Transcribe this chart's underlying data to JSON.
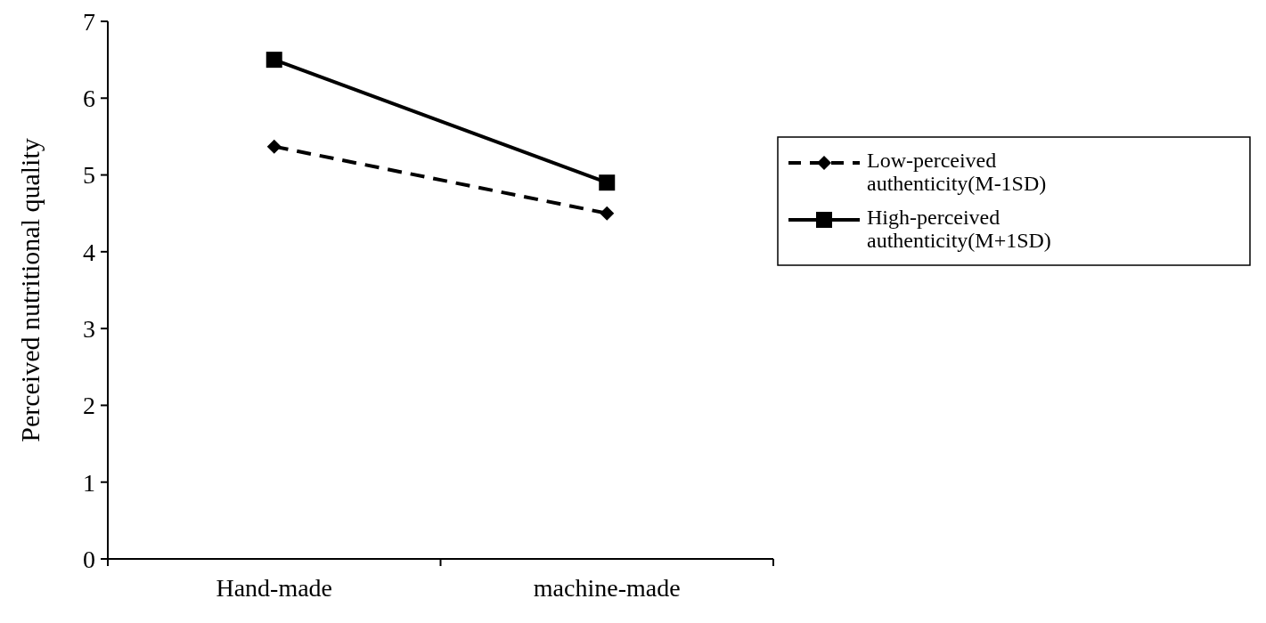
{
  "chart_data": {
    "type": "line",
    "ylabel": "Perceived nutritional quality",
    "categories": [
      "Hand-made",
      "machine-made"
    ],
    "ylim": [
      0,
      7
    ],
    "yticks": [
      0,
      1,
      2,
      3,
      4,
      5,
      6,
      7
    ],
    "grid": false,
    "legend": "right",
    "series": [
      {
        "name": "Low-perceived authenticity(M-1SD)",
        "color": "#000000",
        "values": [
          5.37,
          4.5
        ],
        "marker": "diamond",
        "line_style": "dashed"
      },
      {
        "name": "High-perceived authenticity(M+1SD)",
        "color": "#000000",
        "values": [
          6.5,
          4.9
        ],
        "marker": "square",
        "line_style": "solid"
      }
    ]
  }
}
